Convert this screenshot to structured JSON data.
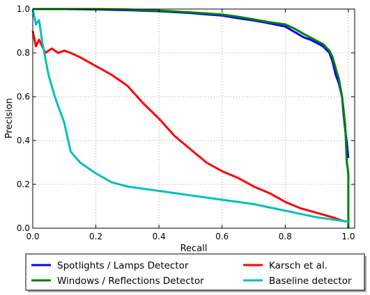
{
  "chart_data": {
    "type": "line",
    "title": "",
    "xlabel": "Recall",
    "ylabel": "Precision",
    "xlim": [
      0.0,
      1.02
    ],
    "ylim": [
      0.0,
      1.0
    ],
    "xticks": [
      "0.0",
      "0.2",
      "0.4",
      "0.6",
      "0.8",
      "1.0"
    ],
    "yticks": [
      "0.0",
      "0.2",
      "0.4",
      "0.6",
      "0.8",
      "1.0"
    ],
    "grid": true,
    "legend_position": "below",
    "series": [
      {
        "name": "Spotlights / Lamps Detector",
        "color": "#0000ff",
        "x": [
          0.0,
          0.1,
          0.2,
          0.3,
          0.4,
          0.5,
          0.55,
          0.6,
          0.65,
          0.7,
          0.75,
          0.8,
          0.83,
          0.86,
          0.88,
          0.9,
          0.92,
          0.94,
          0.95,
          0.96,
          0.97,
          0.98,
          0.985,
          0.99,
          0.995,
          1.0
        ],
        "y": [
          1.0,
          1.0,
          0.998,
          0.995,
          0.99,
          0.982,
          0.976,
          0.97,
          0.958,
          0.948,
          0.935,
          0.92,
          0.895,
          0.87,
          0.86,
          0.845,
          0.83,
          0.8,
          0.76,
          0.7,
          0.66,
          0.6,
          0.52,
          0.45,
          0.39,
          0.32
        ]
      },
      {
        "name": "Windows / Reflections Detector",
        "color": "#008000",
        "x": [
          0.0,
          0.1,
          0.2,
          0.3,
          0.4,
          0.5,
          0.55,
          0.6,
          0.65,
          0.7,
          0.75,
          0.8,
          0.83,
          0.86,
          0.88,
          0.9,
          0.92,
          0.94,
          0.95,
          0.96,
          0.97,
          0.98,
          0.985,
          0.99,
          0.995,
          1.0,
          1.0
        ],
        "y": [
          1.0,
          1.0,
          1.0,
          0.998,
          0.993,
          0.985,
          0.98,
          0.975,
          0.965,
          0.953,
          0.94,
          0.93,
          0.91,
          0.885,
          0.87,
          0.855,
          0.84,
          0.81,
          0.78,
          0.73,
          0.68,
          0.6,
          0.54,
          0.47,
          0.3,
          0.25,
          0.0
        ]
      },
      {
        "name": "Karsch et al.",
        "color": "#ff0000",
        "x": [
          0.0,
          0.01,
          0.02,
          0.04,
          0.06,
          0.08,
          0.1,
          0.12,
          0.15,
          0.2,
          0.25,
          0.3,
          0.35,
          0.4,
          0.45,
          0.5,
          0.55,
          0.6,
          0.65,
          0.7,
          0.75,
          0.8,
          0.85,
          0.9,
          0.95,
          0.99
        ],
        "y": [
          0.9,
          0.83,
          0.86,
          0.8,
          0.82,
          0.8,
          0.81,
          0.8,
          0.78,
          0.74,
          0.7,
          0.65,
          0.57,
          0.5,
          0.42,
          0.36,
          0.3,
          0.26,
          0.23,
          0.19,
          0.16,
          0.12,
          0.09,
          0.07,
          0.05,
          0.03
        ]
      },
      {
        "name": "Baseline detector",
        "color": "#00bfbf",
        "x": [
          0.0,
          0.01,
          0.02,
          0.03,
          0.05,
          0.07,
          0.1,
          0.12,
          0.15,
          0.2,
          0.25,
          0.3,
          0.4,
          0.5,
          0.6,
          0.7,
          0.8,
          0.9,
          1.0
        ],
        "y": [
          1.0,
          0.93,
          0.95,
          0.85,
          0.7,
          0.6,
          0.48,
          0.35,
          0.3,
          0.25,
          0.21,
          0.19,
          0.17,
          0.15,
          0.13,
          0.11,
          0.08,
          0.05,
          0.03
        ]
      }
    ]
  }
}
